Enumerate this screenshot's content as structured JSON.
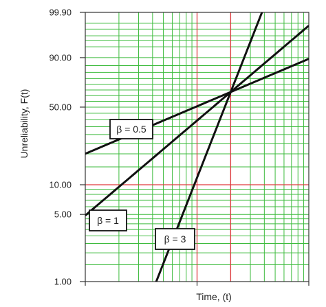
{
  "chart_data": {
    "type": "line",
    "xlabel": "Time, (t)",
    "ylabel": "Unreliability, F(t)",
    "x_scale": "log",
    "y_scale": "weibull",
    "xlim": [
      0.1,
      10
    ],
    "ylim": [
      1.0,
      99.9
    ],
    "y_ticks": [
      {
        "value": 99.9,
        "label": "99.90"
      },
      {
        "value": 90.0,
        "label": "90.00"
      },
      {
        "value": 50.0,
        "label": "50.00"
      },
      {
        "value": 10.0,
        "label": "10.00"
      },
      {
        "value": 5.0,
        "label": "5.00"
      },
      {
        "value": 1.0,
        "label": "1.00"
      }
    ],
    "grid": true,
    "colors": {
      "minor_grid": "#3dbb3d",
      "major_grid": "#e0393e",
      "line": "#111111",
      "axis": "#333333"
    },
    "eta": 2.0,
    "series": [
      {
        "label": "β = 0.5",
        "beta": 0.5
      },
      {
        "label": "β = 1",
        "beta": 1
      },
      {
        "label": "β = 3",
        "beta": 3
      }
    ]
  }
}
